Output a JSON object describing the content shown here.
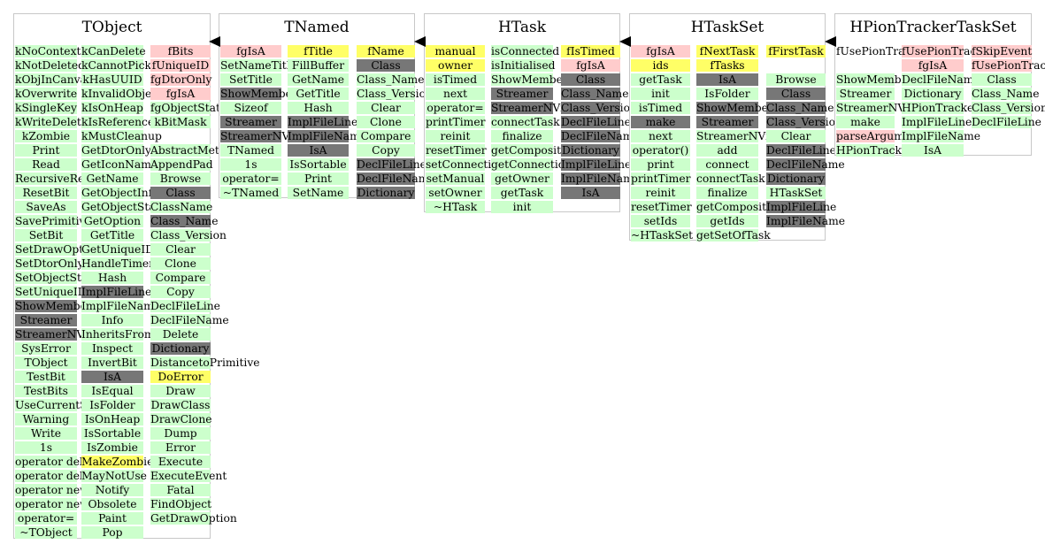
{
  "classes": [
    {
      "title": "TObject",
      "columns": [
        [
          [
            "kNoContextMenu",
            "g"
          ],
          [
            "kNotDeleted",
            "g"
          ],
          [
            "kObjInCanvas",
            "g"
          ],
          [
            "kOverwrite",
            "g"
          ],
          [
            "kSingleKey",
            "g"
          ],
          [
            "kWriteDelete",
            "g"
          ],
          [
            "kZombie",
            "g"
          ],
          [
            "Print",
            "g"
          ],
          [
            "Read",
            "g"
          ],
          [
            "RecursiveRemove",
            "g"
          ],
          [
            "ResetBit",
            "g"
          ],
          [
            "SaveAs",
            "g"
          ],
          [
            "SavePrimitive",
            "g"
          ],
          [
            "SetBit",
            "g"
          ],
          [
            "SetDrawOption",
            "g"
          ],
          [
            "SetDtorOnly",
            "g"
          ],
          [
            "SetObjectStat",
            "g"
          ],
          [
            "SetUniqueID",
            "g"
          ],
          [
            "ShowMembers",
            "d"
          ],
          [
            "Streamer",
            "d"
          ],
          [
            "StreamerNVirtual",
            "d"
          ],
          [
            "SysError",
            "g"
          ],
          [
            "TObject",
            "g"
          ],
          [
            "TestBit",
            "g"
          ],
          [
            "TestBits",
            "g"
          ],
          [
            "UseCurrentStyle",
            "g"
          ],
          [
            "Warning",
            "g"
          ],
          [
            "Write",
            "g"
          ],
          [
            "1s",
            "g"
          ],
          [
            "operator delete",
            "g"
          ],
          [
            "operator delete[]",
            "g"
          ],
          [
            "operator new",
            "g"
          ],
          [
            "operator new[]",
            "g"
          ],
          [
            "operator=",
            "g"
          ],
          [
            "~TObject",
            "g"
          ]
        ],
        [
          [
            "kCanDelete",
            "g"
          ],
          [
            "kCannotPick",
            "g"
          ],
          [
            "kHasUUID",
            "g"
          ],
          [
            "kInvalidObject",
            "g"
          ],
          [
            "kIsOnHeap",
            "g"
          ],
          [
            "kIsReferenced",
            "g"
          ],
          [
            "kMustCleanup",
            "g"
          ],
          [
            "GetDtorOnly",
            "g"
          ],
          [
            "GetIconName",
            "g"
          ],
          [
            "GetName",
            "g"
          ],
          [
            "GetObjectInfo",
            "g"
          ],
          [
            "GetObjectStat",
            "g"
          ],
          [
            "GetOption",
            "g"
          ],
          [
            "GetTitle",
            "g"
          ],
          [
            "GetUniqueID",
            "g"
          ],
          [
            "HandleTimer",
            "g"
          ],
          [
            "Hash",
            "g"
          ],
          [
            "ImplFileLine",
            "d"
          ],
          [
            "ImplFileName",
            "g"
          ],
          [
            "Info",
            "g"
          ],
          [
            "InheritsFrom",
            "g"
          ],
          [
            "Inspect",
            "g"
          ],
          [
            "InvertBit",
            "g"
          ],
          [
            "IsA",
            "d"
          ],
          [
            "IsEqual",
            "g"
          ],
          [
            "IsFolder",
            "g"
          ],
          [
            "IsOnHeap",
            "g"
          ],
          [
            "IsSortable",
            "g"
          ],
          [
            "IsZombie",
            "g"
          ],
          [
            "MakeZombie",
            "y"
          ],
          [
            "MayNotUse",
            "g"
          ],
          [
            "Notify",
            "g"
          ],
          [
            "Obsolete",
            "g"
          ],
          [
            "Paint",
            "g"
          ],
          [
            "Pop",
            "g"
          ]
        ],
        [
          [
            "fBits",
            "r"
          ],
          [
            "fUniqueID",
            "r"
          ],
          [
            "fgDtorOnly",
            "r"
          ],
          [
            "fgIsA",
            "r"
          ],
          [
            "fgObjectStat",
            "g"
          ],
          [
            "kBitMask",
            "g"
          ],
          [
            "",
            ""
          ],
          [
            "AbstractMethod",
            "g"
          ],
          [
            "AppendPad",
            "g"
          ],
          [
            "Browse",
            "g"
          ],
          [
            "Class",
            "d"
          ],
          [
            "ClassName",
            "g"
          ],
          [
            "Class_Name",
            "d"
          ],
          [
            "Class_Version",
            "g"
          ],
          [
            "Clear",
            "g"
          ],
          [
            "Clone",
            "g"
          ],
          [
            "Compare",
            "g"
          ],
          [
            "Copy",
            "g"
          ],
          [
            "DeclFileLine",
            "g"
          ],
          [
            "DeclFileName",
            "g"
          ],
          [
            "Delete",
            "g"
          ],
          [
            "Dictionary",
            "d"
          ],
          [
            "DistancetoPrimitive",
            "g"
          ],
          [
            "DoError",
            "y"
          ],
          [
            "Draw",
            "g"
          ],
          [
            "DrawClass",
            "g"
          ],
          [
            "DrawClone",
            "g"
          ],
          [
            "Dump",
            "g"
          ],
          [
            "Error",
            "g"
          ],
          [
            "Execute",
            "g"
          ],
          [
            "ExecuteEvent",
            "g"
          ],
          [
            "Fatal",
            "g"
          ],
          [
            "FindObject",
            "g"
          ],
          [
            "GetDrawOption",
            "g"
          ]
        ]
      ]
    },
    {
      "title": "TNamed",
      "columns": [
        [
          [
            "fgIsA",
            "r"
          ],
          [
            "SetNameTitle",
            "g"
          ],
          [
            "SetTitle",
            "g"
          ],
          [
            "ShowMembers",
            "d"
          ],
          [
            "Sizeof",
            "g"
          ],
          [
            "Streamer",
            "d"
          ],
          [
            "StreamerNVirtual",
            "d"
          ],
          [
            "TNamed",
            "g"
          ],
          [
            "1s",
            "g"
          ],
          [
            "operator=",
            "g"
          ],
          [
            "~TNamed",
            "g"
          ]
        ],
        [
          [
            "fTitle",
            "y"
          ],
          [
            "FillBuffer",
            "g"
          ],
          [
            "GetName",
            "g"
          ],
          [
            "GetTitle",
            "g"
          ],
          [
            "Hash",
            "g"
          ],
          [
            "ImplFileLine",
            "d"
          ],
          [
            "ImplFileName",
            "d"
          ],
          [
            "IsA",
            "d"
          ],
          [
            "IsSortable",
            "g"
          ],
          [
            "Print",
            "g"
          ],
          [
            "SetName",
            "g"
          ]
        ],
        [
          [
            "fName",
            "y"
          ],
          [
            "Class",
            "d"
          ],
          [
            "Class_Name",
            "g"
          ],
          [
            "Class_Version",
            "g"
          ],
          [
            "Clear",
            "g"
          ],
          [
            "Clone",
            "g"
          ],
          [
            "Compare",
            "g"
          ],
          [
            "Copy",
            "g"
          ],
          [
            "DeclFileLine",
            "d"
          ],
          [
            "DeclFileName",
            "d"
          ],
          [
            "Dictionary",
            "d"
          ]
        ]
      ]
    },
    {
      "title": "HTask",
      "columns": [
        [
          [
            "manual",
            "y"
          ],
          [
            "owner",
            "y"
          ],
          [
            "isTimed",
            "g"
          ],
          [
            "next",
            "g"
          ],
          [
            "operator=",
            "g"
          ],
          [
            "printTimer",
            "g"
          ],
          [
            "reinit",
            "g"
          ],
          [
            "resetTimer",
            "g"
          ],
          [
            "setConnections",
            "g"
          ],
          [
            "setManual",
            "g"
          ],
          [
            "setOwner",
            "g"
          ],
          [
            "~HTask",
            "g"
          ]
        ],
        [
          [
            "isConnected",
            "g"
          ],
          [
            "isInitialised",
            "g"
          ],
          [
            "ShowMembers",
            "g"
          ],
          [
            "Streamer",
            "d"
          ],
          [
            "StreamerNVirtual",
            "d"
          ],
          [
            "connectTask",
            "g"
          ],
          [
            "finalize",
            "g"
          ],
          [
            "getComposite",
            "g"
          ],
          [
            "getConnections",
            "g"
          ],
          [
            "getOwner",
            "g"
          ],
          [
            "getTask",
            "g"
          ],
          [
            "init",
            "g"
          ]
        ],
        [
          [
            "fIsTimed",
            "y"
          ],
          [
            "fgIsA",
            "r"
          ],
          [
            "Class",
            "d"
          ],
          [
            "Class_Name",
            "d"
          ],
          [
            "Class_Version",
            "d"
          ],
          [
            "DeclFileLine",
            "d"
          ],
          [
            "DeclFileName",
            "d"
          ],
          [
            "Dictionary",
            "d"
          ],
          [
            "ImplFileLine",
            "d"
          ],
          [
            "ImplFileName",
            "d"
          ],
          [
            "IsA",
            "d"
          ]
        ]
      ]
    },
    {
      "title": "HTaskSet",
      "columns": [
        [
          [
            "fgIsA",
            "r"
          ],
          [
            "ids",
            "y"
          ],
          [
            "getTask",
            "g"
          ],
          [
            "init",
            "g"
          ],
          [
            "isTimed",
            "g"
          ],
          [
            "make",
            "d"
          ],
          [
            "next",
            "g"
          ],
          [
            "operator()",
            "g"
          ],
          [
            "print",
            "g"
          ],
          [
            "printTimer",
            "g"
          ],
          [
            "reinit",
            "g"
          ],
          [
            "resetTimer",
            "g"
          ],
          [
            "setIds",
            "g"
          ],
          [
            "~HTaskSet",
            "g"
          ]
        ],
        [
          [
            "fNextTask",
            "y"
          ],
          [
            "fTasks",
            "y"
          ],
          [
            "IsA",
            "d"
          ],
          [
            "IsFolder",
            "g"
          ],
          [
            "ShowMembers",
            "d"
          ],
          [
            "Streamer",
            "d"
          ],
          [
            "StreamerNVirtual",
            "g"
          ],
          [
            "add",
            "g"
          ],
          [
            "connect",
            "g"
          ],
          [
            "connectTask",
            "g"
          ],
          [
            "finalize",
            "g"
          ],
          [
            "getComposite",
            "g"
          ],
          [
            "getIds",
            "g"
          ],
          [
            "getSetOfTask",
            "g"
          ]
        ],
        [
          [
            "fFirstTask",
            "y"
          ],
          [
            "",
            ""
          ],
          [
            "Browse",
            "g"
          ],
          [
            "Class",
            "d"
          ],
          [
            "Class_Name",
            "d"
          ],
          [
            "Class_Version",
            "d"
          ],
          [
            "Clear",
            "g"
          ],
          [
            "DeclFileLine",
            "d"
          ],
          [
            "DeclFileName",
            "d"
          ],
          [
            "Dictionary",
            "d"
          ],
          [
            "HTaskSet",
            "g"
          ],
          [
            "ImplFileLine",
            "d"
          ],
          [
            "ImplFileName",
            "d"
          ]
        ]
      ]
    },
    {
      "title": "HPionTrackerTaskSet",
      "columns": [
        [
          [
            "fUsePionTrackerTask",
            "w"
          ],
          [
            "",
            ""
          ],
          [
            "ShowMembers",
            "g"
          ],
          [
            "Streamer",
            "g"
          ],
          [
            "StreamerNVirtual",
            "g"
          ],
          [
            "make",
            "g"
          ],
          [
            "parseArguments",
            "r"
          ],
          [
            "HPionTrackerTaskSet",
            "g"
          ]
        ],
        [
          [
            "fUsePionTrackerTask",
            "r"
          ],
          [
            "fgIsA",
            "r"
          ],
          [
            "DeclFileName",
            "g"
          ],
          [
            "Dictionary",
            "g"
          ],
          [
            "HPionTrackerTaskSet",
            "g"
          ],
          [
            "ImplFileLine",
            "g"
          ],
          [
            "ImplFileName",
            "g"
          ],
          [
            "IsA",
            "g"
          ]
        ],
        [
          [
            "fSkipEvent",
            "r"
          ],
          [
            "fUsePionTrackerHit",
            "r"
          ],
          [
            "Class",
            "g"
          ],
          [
            "Class_Name",
            "g"
          ],
          [
            "Class_Version",
            "g"
          ],
          [
            "DeclFileLine",
            "g"
          ]
        ]
      ]
    }
  ]
}
